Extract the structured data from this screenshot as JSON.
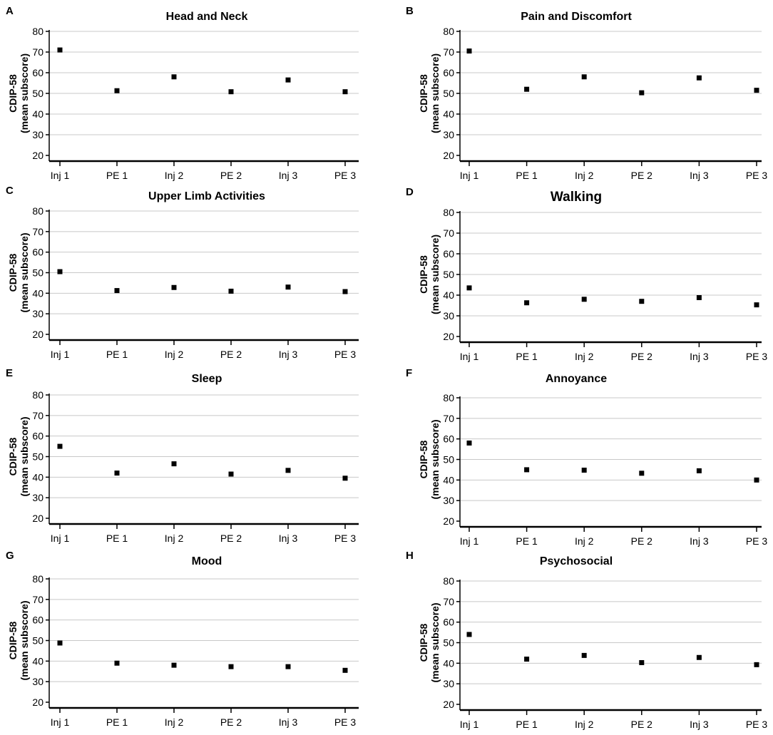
{
  "figure": {
    "shared_axis": {
      "ylabel_line1": "CDIP-58",
      "ylabel_line2": "(mean subscore)",
      "yticks": [
        20,
        30,
        40,
        50,
        60,
        70,
        80
      ],
      "categories": [
        "Inj 1",
        "PE 1",
        "Inj 2",
        "PE 2",
        "Inj 3",
        "PE 3"
      ]
    }
  },
  "chart_data": [
    {
      "type": "scatter",
      "panel": "A",
      "title": "Head and Neck",
      "categories": [
        "Inj 1",
        "PE 1",
        "Inj 2",
        "PE 2",
        "Inj 3",
        "PE 3"
      ],
      "values": [
        71,
        51.3,
        58,
        50.8,
        56.5,
        50.8
      ],
      "ylabel": "CDIP-58 (mean subscore)",
      "ylim": [
        20,
        80
      ],
      "grid": true
    },
    {
      "type": "scatter",
      "panel": "B",
      "title": "Pain and Discomfort",
      "categories": [
        "Inj 1",
        "PE 1",
        "Inj 2",
        "PE 2",
        "Inj 3",
        "PE 3"
      ],
      "values": [
        70.5,
        52,
        58,
        50.3,
        57.5,
        51.5
      ],
      "ylabel": "CDIP-58 (mean subscore)",
      "ylim": [
        20,
        80
      ],
      "grid": true
    },
    {
      "type": "scatter",
      "panel": "C",
      "title": "Upper  Limb Activities",
      "categories": [
        "Inj 1",
        "PE 1",
        "Inj 2",
        "PE 2",
        "Inj 3",
        "PE 3"
      ],
      "values": [
        50.5,
        41.3,
        42.8,
        41,
        43,
        40.8
      ],
      "ylabel": "CDIP-58 (mean subscore)",
      "ylim": [
        20,
        80
      ],
      "grid": true
    },
    {
      "type": "scatter",
      "panel": "D",
      "title": "Walking",
      "title_large": true,
      "categories": [
        "Inj 1",
        "PE 1",
        "Inj 2",
        "PE 2",
        "Inj 3",
        "PE 3"
      ],
      "values": [
        43.5,
        36.3,
        38,
        37,
        38.8,
        35.3
      ],
      "ylabel": "CDIP-58 (mean subscore)",
      "ylim": [
        20,
        80
      ],
      "grid": true
    },
    {
      "type": "scatter",
      "panel": "E",
      "title": "Sleep",
      "categories": [
        "Inj 1",
        "PE 1",
        "Inj 2",
        "PE 2",
        "Inj 3",
        "PE 3"
      ],
      "values": [
        55,
        42,
        46.5,
        41.5,
        43.3,
        39.5
      ],
      "ylabel": "CDIP-58 (mean subscore)",
      "ylim": [
        20,
        80
      ],
      "grid": true
    },
    {
      "type": "scatter",
      "panel": "F",
      "title": "Annoyance",
      "categories": [
        "Inj 1",
        "PE 1",
        "Inj 2",
        "PE 2",
        "Inj 3",
        "PE 3"
      ],
      "values": [
        58,
        45,
        44.8,
        43.3,
        44.5,
        40
      ],
      "ylabel": "CDIP-58 (mean subscore)",
      "ylim": [
        20,
        80
      ],
      "grid": true
    },
    {
      "type": "scatter",
      "panel": "G",
      "title": "Mood",
      "categories": [
        "Inj 1",
        "PE 1",
        "Inj 2",
        "PE 2",
        "Inj 3",
        "PE 3"
      ],
      "values": [
        48.8,
        39,
        38,
        37.3,
        37.3,
        35.5
      ],
      "ylabel": "CDIP-58 (mean subscore)",
      "ylim": [
        20,
        80
      ],
      "grid": true
    },
    {
      "type": "scatter",
      "panel": "H",
      "title": "Psychosocial",
      "categories": [
        "Inj 1",
        "PE 1",
        "Inj 2",
        "PE 2",
        "Inj 3",
        "PE 3"
      ],
      "values": [
        54,
        42,
        43.8,
        40.3,
        42.8,
        39.3
      ],
      "ylabel": "CDIP-58 (mean subscore)",
      "ylim": [
        20,
        80
      ],
      "grid": true
    }
  ]
}
